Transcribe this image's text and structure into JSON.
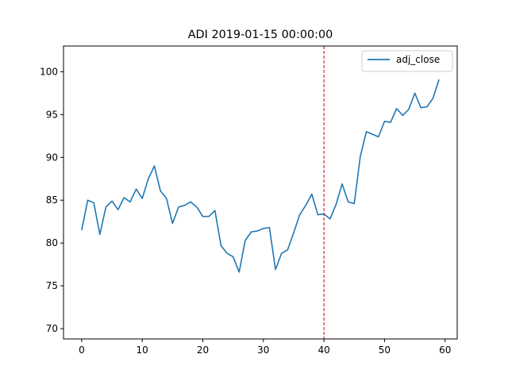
{
  "chart_data": {
    "type": "line",
    "title": "ADI 2019-01-15 00:00:00",
    "xlabel": "",
    "ylabel": "",
    "xlim": [
      -3,
      62
    ],
    "ylim": [
      68.8,
      103
    ],
    "xticks": [
      0,
      10,
      20,
      30,
      40,
      50,
      60
    ],
    "yticks": [
      70,
      75,
      80,
      85,
      90,
      95,
      100
    ],
    "grid": false,
    "legend_position": "top-right",
    "vline": {
      "x": 40,
      "color": "#d62728",
      "style": "dashed"
    },
    "series": [
      {
        "name": "adj_close",
        "color": "#1f77b4",
        "x": [
          0,
          1,
          2,
          3,
          4,
          5,
          6,
          7,
          8,
          9,
          10,
          11,
          12,
          13,
          14,
          15,
          16,
          17,
          18,
          19,
          20,
          21,
          22,
          23,
          24,
          25,
          26,
          27,
          28,
          29,
          30,
          31,
          32,
          33,
          34,
          35,
          36,
          37,
          38,
          39,
          40,
          41,
          42,
          43,
          44,
          45,
          46,
          47,
          48,
          49,
          50,
          51,
          52,
          53,
          54,
          55,
          56,
          57,
          58,
          59
        ],
        "values": [
          81.5,
          85.0,
          84.7,
          81.0,
          84.2,
          84.9,
          83.9,
          85.3,
          84.8,
          86.3,
          85.2,
          87.5,
          89.0,
          86.1,
          85.2,
          82.3,
          84.2,
          84.4,
          84.8,
          84.2,
          83.1,
          83.1,
          83.8,
          79.7,
          78.8,
          78.4,
          76.6,
          80.3,
          81.3,
          81.4,
          81.7,
          81.8,
          76.9,
          78.8,
          79.2,
          81.2,
          83.3,
          84.4,
          85.7,
          83.3,
          83.4,
          82.8,
          84.5,
          86.9,
          84.8,
          84.6,
          90.1,
          93.0,
          92.7,
          92.4,
          94.2,
          94.1,
          95.7,
          94.9,
          95.6,
          97.5,
          95.8,
          95.9,
          96.9,
          99.1
        ]
      }
    ]
  }
}
